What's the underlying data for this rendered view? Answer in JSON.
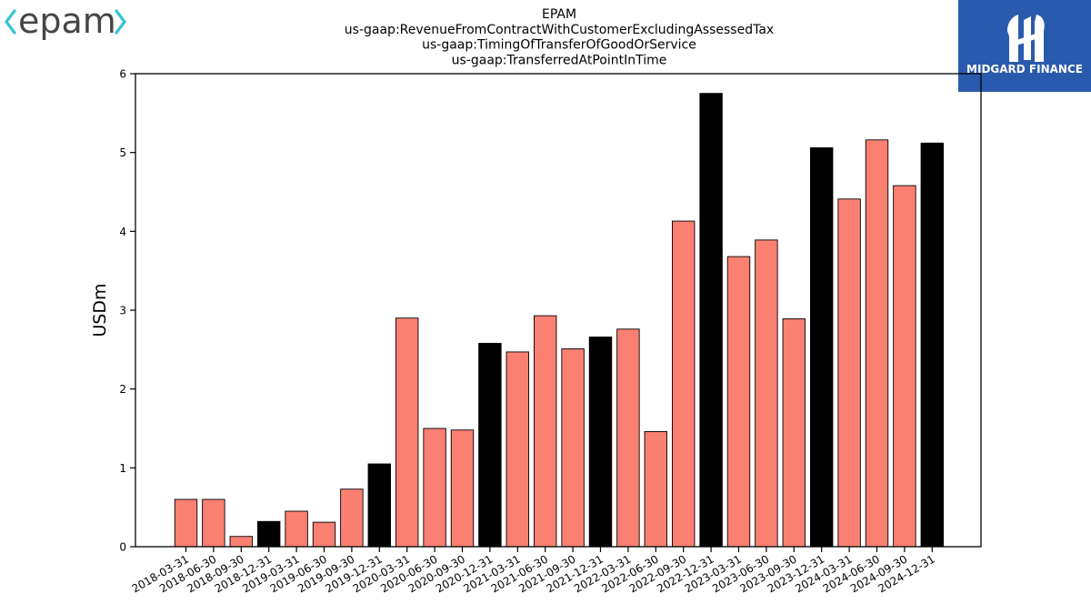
{
  "logos": {
    "left_text": "epam",
    "right_text": "MIDGARD FINANCE"
  },
  "chart_data": {
    "type": "bar",
    "title_lines": [
      "EPAM",
      "us-gaap:RevenueFromContractWithCustomerExcludingAssessedTax",
      "us-gaap:TimingOfTransferOfGoodOrService",
      "us-gaap:TransferredAtPointInTime"
    ],
    "ylabel": "USDm",
    "xlabel": "",
    "ylim": [
      0,
      6
    ],
    "yticks": [
      0,
      1,
      2,
      3,
      4,
      5,
      6
    ],
    "grid": false,
    "colors": {
      "quarter": "#fa8072",
      "year_end": "#000000",
      "edge": "#000000"
    },
    "categories": [
      "2018-03-31",
      "2018-06-30",
      "2018-09-30",
      "2018-12-31",
      "2019-03-31",
      "2019-06-30",
      "2019-09-30",
      "2019-12-31",
      "2020-03-31",
      "2020-06-30",
      "2020-09-30",
      "2020-12-31",
      "2021-03-31",
      "2021-06-30",
      "2021-09-30",
      "2021-12-31",
      "2022-03-31",
      "2022-06-30",
      "2022-09-30",
      "2022-12-31",
      "2023-03-31",
      "2023-06-30",
      "2023-09-30",
      "2023-12-31",
      "2024-03-31",
      "2024-06-30",
      "2024-09-30",
      "2024-12-31"
    ],
    "values": [
      0.6,
      0.6,
      0.13,
      0.32,
      0.45,
      0.31,
      0.73,
      1.05,
      2.9,
      1.5,
      1.48,
      2.58,
      2.47,
      2.93,
      2.51,
      2.66,
      2.76,
      1.46,
      4.13,
      5.75,
      3.68,
      3.89,
      2.89,
      5.06,
      4.41,
      5.16,
      4.58,
      5.12
    ]
  }
}
